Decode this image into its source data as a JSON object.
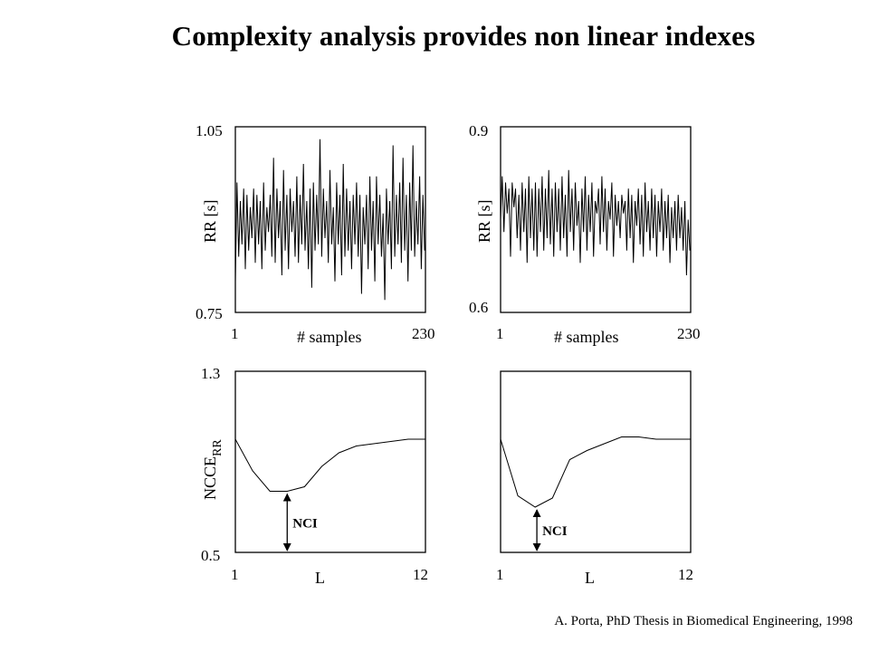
{
  "slide": {
    "title": "Complexity analysis provides non linear indexes",
    "citation": "A. Porta, PhD Thesis in Biomedical Engineering, 1998"
  },
  "colors": {
    "line": "#000000",
    "background": "#ffffff"
  },
  "chart_data": [
    {
      "id": "rr-left",
      "type": "line",
      "ylabel": "RR [s]",
      "xlabel": "# samples",
      "xlim": [
        1,
        230
      ],
      "ylim": [
        0.75,
        1.05
      ],
      "xticks": [
        "1",
        "230"
      ],
      "yticks": [
        "0.75",
        "1.05"
      ],
      "grid": false,
      "series": [
        {
          "x": [
            1,
            3,
            5,
            7,
            9,
            11,
            13,
            15,
            17,
            19,
            21,
            23,
            25,
            27,
            29,
            31,
            33,
            35,
            37,
            39,
            41,
            43,
            45,
            47,
            49,
            51,
            53,
            55,
            57,
            59,
            61,
            63,
            65,
            67,
            69,
            71,
            73,
            75,
            77,
            79,
            81,
            83,
            85,
            87,
            89,
            91,
            93,
            95,
            97,
            99,
            101,
            103,
            105,
            107,
            109,
            111,
            113,
            115,
            117,
            119,
            121,
            123,
            125,
            127,
            129,
            131,
            133,
            135,
            137,
            139,
            141,
            143,
            145,
            147,
            149,
            151,
            153,
            155,
            157,
            159,
            161,
            163,
            165,
            167,
            169,
            171,
            173,
            175,
            177,
            179,
            181,
            183,
            185,
            187,
            189,
            191,
            193,
            195,
            197,
            199,
            201,
            203,
            205,
            207,
            209,
            211,
            213,
            215,
            217,
            219,
            221,
            223,
            225,
            227,
            229
          ],
          "y": [
            0.8,
            0.96,
            0.84,
            0.93,
            0.86,
            0.95,
            0.82,
            0.94,
            0.85,
            0.92,
            0.87,
            0.95,
            0.83,
            0.94,
            0.86,
            0.93,
            0.82,
            0.96,
            0.85,
            0.92,
            0.88,
            0.94,
            0.84,
            1.0,
            0.83,
            0.95,
            0.87,
            0.93,
            0.81,
            0.98,
            0.85,
            0.94,
            0.82,
            0.95,
            0.88,
            0.93,
            0.84,
            0.97,
            0.83,
            0.94,
            0.86,
            0.99,
            0.85,
            0.93,
            0.82,
            0.95,
            0.79,
            0.96,
            0.85,
            0.94,
            0.86,
            1.03,
            0.84,
            0.95,
            0.87,
            0.93,
            0.83,
            0.98,
            0.86,
            0.92,
            0.8,
            0.96,
            0.86,
            0.94,
            0.81,
            0.99,
            0.84,
            0.95,
            0.85,
            0.93,
            0.82,
            0.94,
            0.86,
            0.96,
            0.84,
            0.94,
            0.78,
            0.92,
            0.86,
            0.94,
            0.82,
            0.97,
            0.85,
            0.93,
            0.8,
            0.97,
            0.86,
            0.94,
            0.84,
            0.91,
            0.77,
            0.95,
            0.86,
            0.93,
            0.82,
            1.02,
            0.84,
            0.94,
            0.86,
            0.96,
            0.83,
            1.0,
            0.85,
            0.94,
            0.8,
            0.96,
            0.85,
            1.02,
            0.84,
            0.93,
            0.86,
            0.97,
            0.82,
            0.94,
            0.85
          ]
        }
      ]
    },
    {
      "id": "rr-right",
      "type": "line",
      "ylabel": "RR [s]",
      "xlabel": "# samples",
      "xlim": [
        1,
        230
      ],
      "ylim": [
        0.6,
        0.9
      ],
      "xticks": [
        "1",
        "230"
      ],
      "yticks": [
        "0.6",
        "0.9"
      ],
      "grid": false,
      "series": [
        {
          "x": [
            1,
            3,
            5,
            7,
            9,
            11,
            13,
            15,
            17,
            19,
            21,
            23,
            25,
            27,
            29,
            31,
            33,
            35,
            37,
            39,
            41,
            43,
            45,
            47,
            49,
            51,
            53,
            55,
            57,
            59,
            61,
            63,
            65,
            67,
            69,
            71,
            73,
            75,
            77,
            79,
            81,
            83,
            85,
            87,
            89,
            91,
            93,
            95,
            97,
            99,
            101,
            103,
            105,
            107,
            109,
            111,
            113,
            115,
            117,
            119,
            121,
            123,
            125,
            127,
            129,
            131,
            133,
            135,
            137,
            139,
            141,
            143,
            145,
            147,
            149,
            151,
            153,
            155,
            157,
            159,
            161,
            163,
            165,
            167,
            169,
            171,
            173,
            175,
            177,
            179,
            181,
            183,
            185,
            187,
            189,
            191,
            193,
            195,
            197,
            199,
            201,
            203,
            205,
            207,
            209,
            211,
            213,
            215,
            217,
            219,
            221,
            223,
            225,
            227,
            229
          ],
          "y": [
            0.75,
            0.82,
            0.73,
            0.81,
            0.76,
            0.8,
            0.69,
            0.81,
            0.77,
            0.8,
            0.72,
            0.79,
            0.7,
            0.81,
            0.73,
            0.8,
            0.68,
            0.82,
            0.72,
            0.8,
            0.7,
            0.81,
            0.69,
            0.8,
            0.73,
            0.82,
            0.7,
            0.8,
            0.72,
            0.83,
            0.71,
            0.8,
            0.69,
            0.81,
            0.73,
            0.8,
            0.7,
            0.82,
            0.72,
            0.79,
            0.69,
            0.83,
            0.73,
            0.8,
            0.7,
            0.81,
            0.74,
            0.78,
            0.68,
            0.8,
            0.73,
            0.82,
            0.7,
            0.79,
            0.73,
            0.81,
            0.69,
            0.78,
            0.76,
            0.8,
            0.71,
            0.82,
            0.73,
            0.8,
            0.7,
            0.78,
            0.75,
            0.81,
            0.69,
            0.79,
            0.74,
            0.78,
            0.72,
            0.79,
            0.76,
            0.78,
            0.7,
            0.8,
            0.72,
            0.79,
            0.68,
            0.78,
            0.74,
            0.8,
            0.71,
            0.79,
            0.69,
            0.81,
            0.73,
            0.78,
            0.7,
            0.8,
            0.72,
            0.79,
            0.69,
            0.78,
            0.73,
            0.8,
            0.7,
            0.78,
            0.72,
            0.79,
            0.68,
            0.77,
            0.72,
            0.78,
            0.7,
            0.79,
            0.72,
            0.77,
            0.7,
            0.78,
            0.66,
            0.75,
            0.7
          ]
        }
      ]
    },
    {
      "id": "ncce-left",
      "type": "line",
      "ylabel": "NCCE",
      "ylabel_sub": "RR",
      "xlabel": "L",
      "xlim": [
        1,
        12
      ],
      "ylim": [
        0.5,
        1.3
      ],
      "xticks": [
        "1",
        "12"
      ],
      "yticks": [
        "0.5",
        "1.3"
      ],
      "grid": false,
      "series": [
        {
          "x": [
            1,
            2,
            3,
            4,
            5,
            6,
            7,
            8,
            9,
            10,
            11,
            12
          ],
          "y": [
            1.0,
            0.86,
            0.77,
            0.77,
            0.79,
            0.88,
            0.94,
            0.97,
            0.98,
            0.99,
            1.0,
            1.0
          ]
        }
      ],
      "annotation": {
        "label": "NCI",
        "x": 4.0,
        "from": 0.5,
        "to": 0.77
      }
    },
    {
      "id": "ncce-right",
      "type": "line",
      "ylabel": "",
      "xlabel": "L",
      "xlim": [
        1,
        12
      ],
      "ylim": [
        0.5,
        1.3
      ],
      "xticks": [
        "1",
        "12"
      ],
      "yticks": [],
      "grid": false,
      "series": [
        {
          "x": [
            1,
            2,
            3,
            4,
            5,
            6,
            7,
            8,
            9,
            10,
            11,
            12
          ],
          "y": [
            1.0,
            0.75,
            0.7,
            0.74,
            0.91,
            0.95,
            0.98,
            1.01,
            1.01,
            1.0,
            1.0,
            1.0
          ]
        }
      ],
      "annotation": {
        "label": "NCI",
        "x": 3.1,
        "from": 0.5,
        "to": 0.7
      }
    }
  ]
}
